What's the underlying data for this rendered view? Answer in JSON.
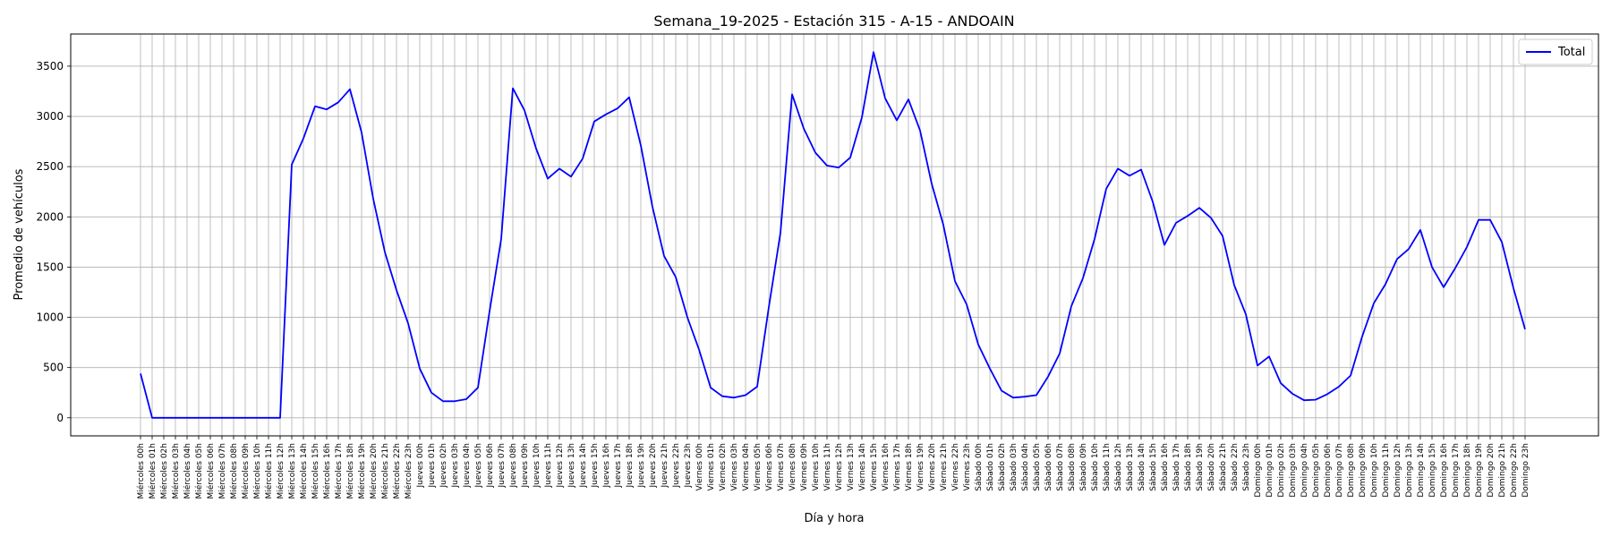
{
  "chart_data": {
    "type": "line",
    "title": "Semana_19-2025 - Estación 315 - A-15  - ANDOAIN",
    "xlabel": "Día y hora",
    "ylabel": "Promedio de vehículos",
    "ylim": [
      -180,
      3820
    ],
    "yticks": [
      0,
      500,
      1000,
      1500,
      2000,
      2500,
      3000,
      3500
    ],
    "grid": true,
    "legend_position": "top-right",
    "line_color": "#0000ff",
    "categories": [
      "Miércoles 00h",
      "Miércoles 01h",
      "Miércoles 02h",
      "Miércoles 03h",
      "Miércoles 04h",
      "Miércoles 05h",
      "Miércoles 06h",
      "Miércoles 07h",
      "Miércoles 08h",
      "Miércoles 09h",
      "Miércoles 10h",
      "Miércoles 11h",
      "Miércoles 12h",
      "Miércoles 13h",
      "Miércoles 14h",
      "Miércoles 15h",
      "Miércoles 16h",
      "Miércoles 17h",
      "Miércoles 18h",
      "Miércoles 19h",
      "Miércoles 20h",
      "Miércoles 21h",
      "Miércoles 22h",
      "Miércoles 23h",
      "Jueves 00h",
      "Jueves 01h",
      "Jueves 02h",
      "Jueves 03h",
      "Jueves 04h",
      "Jueves 05h",
      "Jueves 06h",
      "Jueves 07h",
      "Jueves 08h",
      "Jueves 09h",
      "Jueves 10h",
      "Jueves 11h",
      "Jueves 12h",
      "Jueves 13h",
      "Jueves 14h",
      "Jueves 15h",
      "Jueves 16h",
      "Jueves 17h",
      "Jueves 18h",
      "Jueves 19h",
      "Jueves 20h",
      "Jueves 21h",
      "Jueves 22h",
      "Jueves 23h",
      "Viernes 00h",
      "Viernes 01h",
      "Viernes 02h",
      "Viernes 03h",
      "Viernes 04h",
      "Viernes 05h",
      "Viernes 06h",
      "Viernes 07h",
      "Viernes 08h",
      "Viernes 09h",
      "Viernes 10h",
      "Viernes 11h",
      "Viernes 12h",
      "Viernes 13h",
      "Viernes 14h",
      "Viernes 15h",
      "Viernes 16h",
      "Viernes 17h",
      "Viernes 18h",
      "Viernes 19h",
      "Viernes 20h",
      "Viernes 21h",
      "Viernes 22h",
      "Viernes 23h",
      "Sábado 00h",
      "Sábado 01h",
      "Sábado 02h",
      "Sábado 03h",
      "Sábado 04h",
      "Sábado 05h",
      "Sábado 06h",
      "Sábado 07h",
      "Sábado 08h",
      "Sábado 09h",
      "Sábado 10h",
      "Sábado 11h",
      "Sábado 12h",
      "Sábado 13h",
      "Sábado 14h",
      "Sábado 15h",
      "Sábado 16h",
      "Sábado 17h",
      "Sábado 18h",
      "Sábado 19h",
      "Sábado 20h",
      "Sábado 21h",
      "Sábado 22h",
      "Sábado 23h",
      "Domingo 00h",
      "Domingo 01h",
      "Domingo 02h",
      "Domingo 03h",
      "Domingo 04h",
      "Domingo 05h",
      "Domingo 06h",
      "Domingo 07h",
      "Domingo 08h",
      "Domingo 09h",
      "Domingo 10h",
      "Domingo 11h",
      "Domingo 12h",
      "Domingo 13h",
      "Domingo 14h",
      "Domingo 15h",
      "Domingo 16h",
      "Domingo 17h",
      "Domingo 18h",
      "Domingo 19h",
      "Domingo 20h",
      "Domingo 21h",
      "Domingo 22h",
      "Domingo 23h"
    ],
    "series": [
      {
        "name": "Total",
        "values": [
          440,
          0,
          0,
          0,
          0,
          0,
          0,
          0,
          0,
          0,
          0,
          0,
          0,
          2520,
          2780,
          3100,
          3070,
          3140,
          3270,
          2840,
          2180,
          1650,
          1270,
          940,
          490,
          250,
          165,
          165,
          185,
          300,
          1060,
          1780,
          3280,
          3060,
          2680,
          2380,
          2480,
          2400,
          2580,
          2950,
          3020,
          3080,
          3190,
          2710,
          2100,
          1610,
          1400,
          1000,
          680,
          300,
          215,
          200,
          225,
          310,
          1100,
          1840,
          3220,
          2880,
          2640,
          2510,
          2490,
          2590,
          2990,
          3640,
          3180,
          2960,
          3170,
          2860,
          2330,
          1920,
          1360,
          1130,
          730,
          490,
          270,
          200,
          210,
          225,
          410,
          640,
          1110,
          1390,
          1780,
          2280,
          2480,
          2410,
          2470,
          2150,
          1720,
          1940,
          2010,
          2090,
          1990,
          1810,
          1320,
          1030,
          520,
          610,
          345,
          240,
          175,
          180,
          235,
          310,
          420,
          810,
          1140,
          1330,
          1580,
          1680,
          1870,
          1500,
          1300,
          1490,
          1700,
          1970,
          1970,
          1750,
          1290,
          880
        ]
      }
    ]
  }
}
